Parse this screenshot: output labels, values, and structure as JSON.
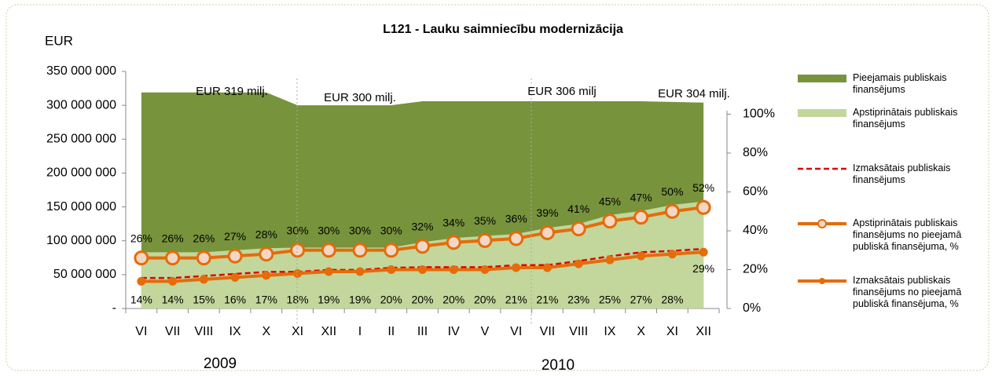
{
  "chart_data": {
    "type": "combo",
    "title": "L121 - Lauku saimniecību modernizācija",
    "y_label": "EUR",
    "categories": [
      "VI",
      "VII",
      "VIII",
      "IX",
      "X",
      "XI",
      "XII",
      "I",
      "II",
      "III",
      "IV",
      "V",
      "VI",
      "VII",
      "VIII",
      "IX",
      "X",
      "XI",
      "XII"
    ],
    "years": [
      "2009",
      "2010"
    ],
    "annotations": [
      "EUR 319 milj.",
      "EUR 300 milj.",
      "EUR 306 milj",
      "EUR 304 milj."
    ],
    "ylim": [
      0,
      350000000
    ],
    "yticks": [
      {
        "value": 0,
        "label": "-"
      },
      {
        "value": 50000000,
        "label": "50 000 000"
      },
      {
        "value": 100000000,
        "label": "100 000 000"
      },
      {
        "value": 150000000,
        "label": "150 000 000"
      },
      {
        "value": 200000000,
        "label": "200 000 000"
      },
      {
        "value": 250000000,
        "label": "250 000 000"
      },
      {
        "value": 300000000,
        "label": "300 000 000"
      },
      {
        "value": 350000000,
        "label": "350 000 000"
      }
    ],
    "y2lim": [
      0,
      122
    ],
    "y2ticks": [
      {
        "value": 0,
        "label": "0%"
      },
      {
        "value": 20,
        "label": "20%"
      },
      {
        "value": 40,
        "label": "40%"
      },
      {
        "value": 60,
        "label": "60%"
      },
      {
        "value": 80,
        "label": "80%"
      },
      {
        "value": 100,
        "label": "100%"
      }
    ],
    "series": [
      {
        "name": "Pieejamais publiskais finansējums",
        "kind": "area",
        "color": "#77933c",
        "values": [
          319000000,
          319000000,
          319000000,
          319000000,
          319000000,
          300000000,
          300000000,
          300000000,
          300000000,
          306000000,
          306000000,
          306000000,
          306000000,
          306000000,
          306000000,
          306000000,
          306000000,
          305000000,
          304000000
        ]
      },
      {
        "name": "Apstiprinātais publiskais finansējums",
        "kind": "area",
        "color": "#c3d69b",
        "values": [
          83000000,
          83000000,
          83000000,
          86000000,
          89000000,
          90000000,
          90000000,
          90000000,
          90000000,
          98000000,
          104000000,
          107000000,
          110000000,
          119000000,
          125000000,
          138000000,
          144000000,
          153000000,
          158000000
        ]
      },
      {
        "name": "Izmaksātais publiskais finansējums",
        "kind": "dashed",
        "color": "#e00000",
        "values": [
          45000000,
          45000000,
          48000000,
          51000000,
          54000000,
          54000000,
          57000000,
          57000000,
          60000000,
          61000000,
          61000000,
          61000000,
          64000000,
          64000000,
          70000000,
          77000000,
          83000000,
          85000000,
          88000000
        ]
      },
      {
        "name": "Apstiprinātais publiskais finansējums no pieejamā publiskā finansējuma, %",
        "kind": "line-big",
        "axis": "y2",
        "color": "#e46c0a",
        "values": [
          26,
          26,
          26,
          27,
          28,
          30,
          30,
          30,
          30,
          32,
          34,
          35,
          36,
          39,
          41,
          45,
          47,
          50,
          52
        ],
        "value_labels": [
          "26%",
          "26%",
          "26%",
          "27%",
          "28%",
          "30%",
          "30%",
          "30%",
          "30%",
          "32%",
          "34%",
          "35%",
          "36%",
          "39%",
          "41%",
          "45%",
          "47%",
          "50%",
          "52%"
        ]
      },
      {
        "name": "Izmaksātais publiskais finansējums no pieejamā publiskā finansējuma, %",
        "kind": "line-small",
        "axis": "y2",
        "color": "#e46c0a",
        "values": [
          14,
          14,
          15,
          16,
          17,
          18,
          19,
          19,
          20,
          20,
          20,
          20,
          21,
          21,
          23,
          25,
          27,
          28,
          29
        ],
        "value_labels": [
          "14%",
          "14%",
          "15%",
          "16%",
          "17%",
          "18%",
          "19%",
          "19%",
          "20%",
          "20%",
          "20%",
          "20%",
          "21%",
          "21%",
          "23%",
          "25%",
          "27%",
          "28%",
          "29%"
        ]
      }
    ]
  }
}
